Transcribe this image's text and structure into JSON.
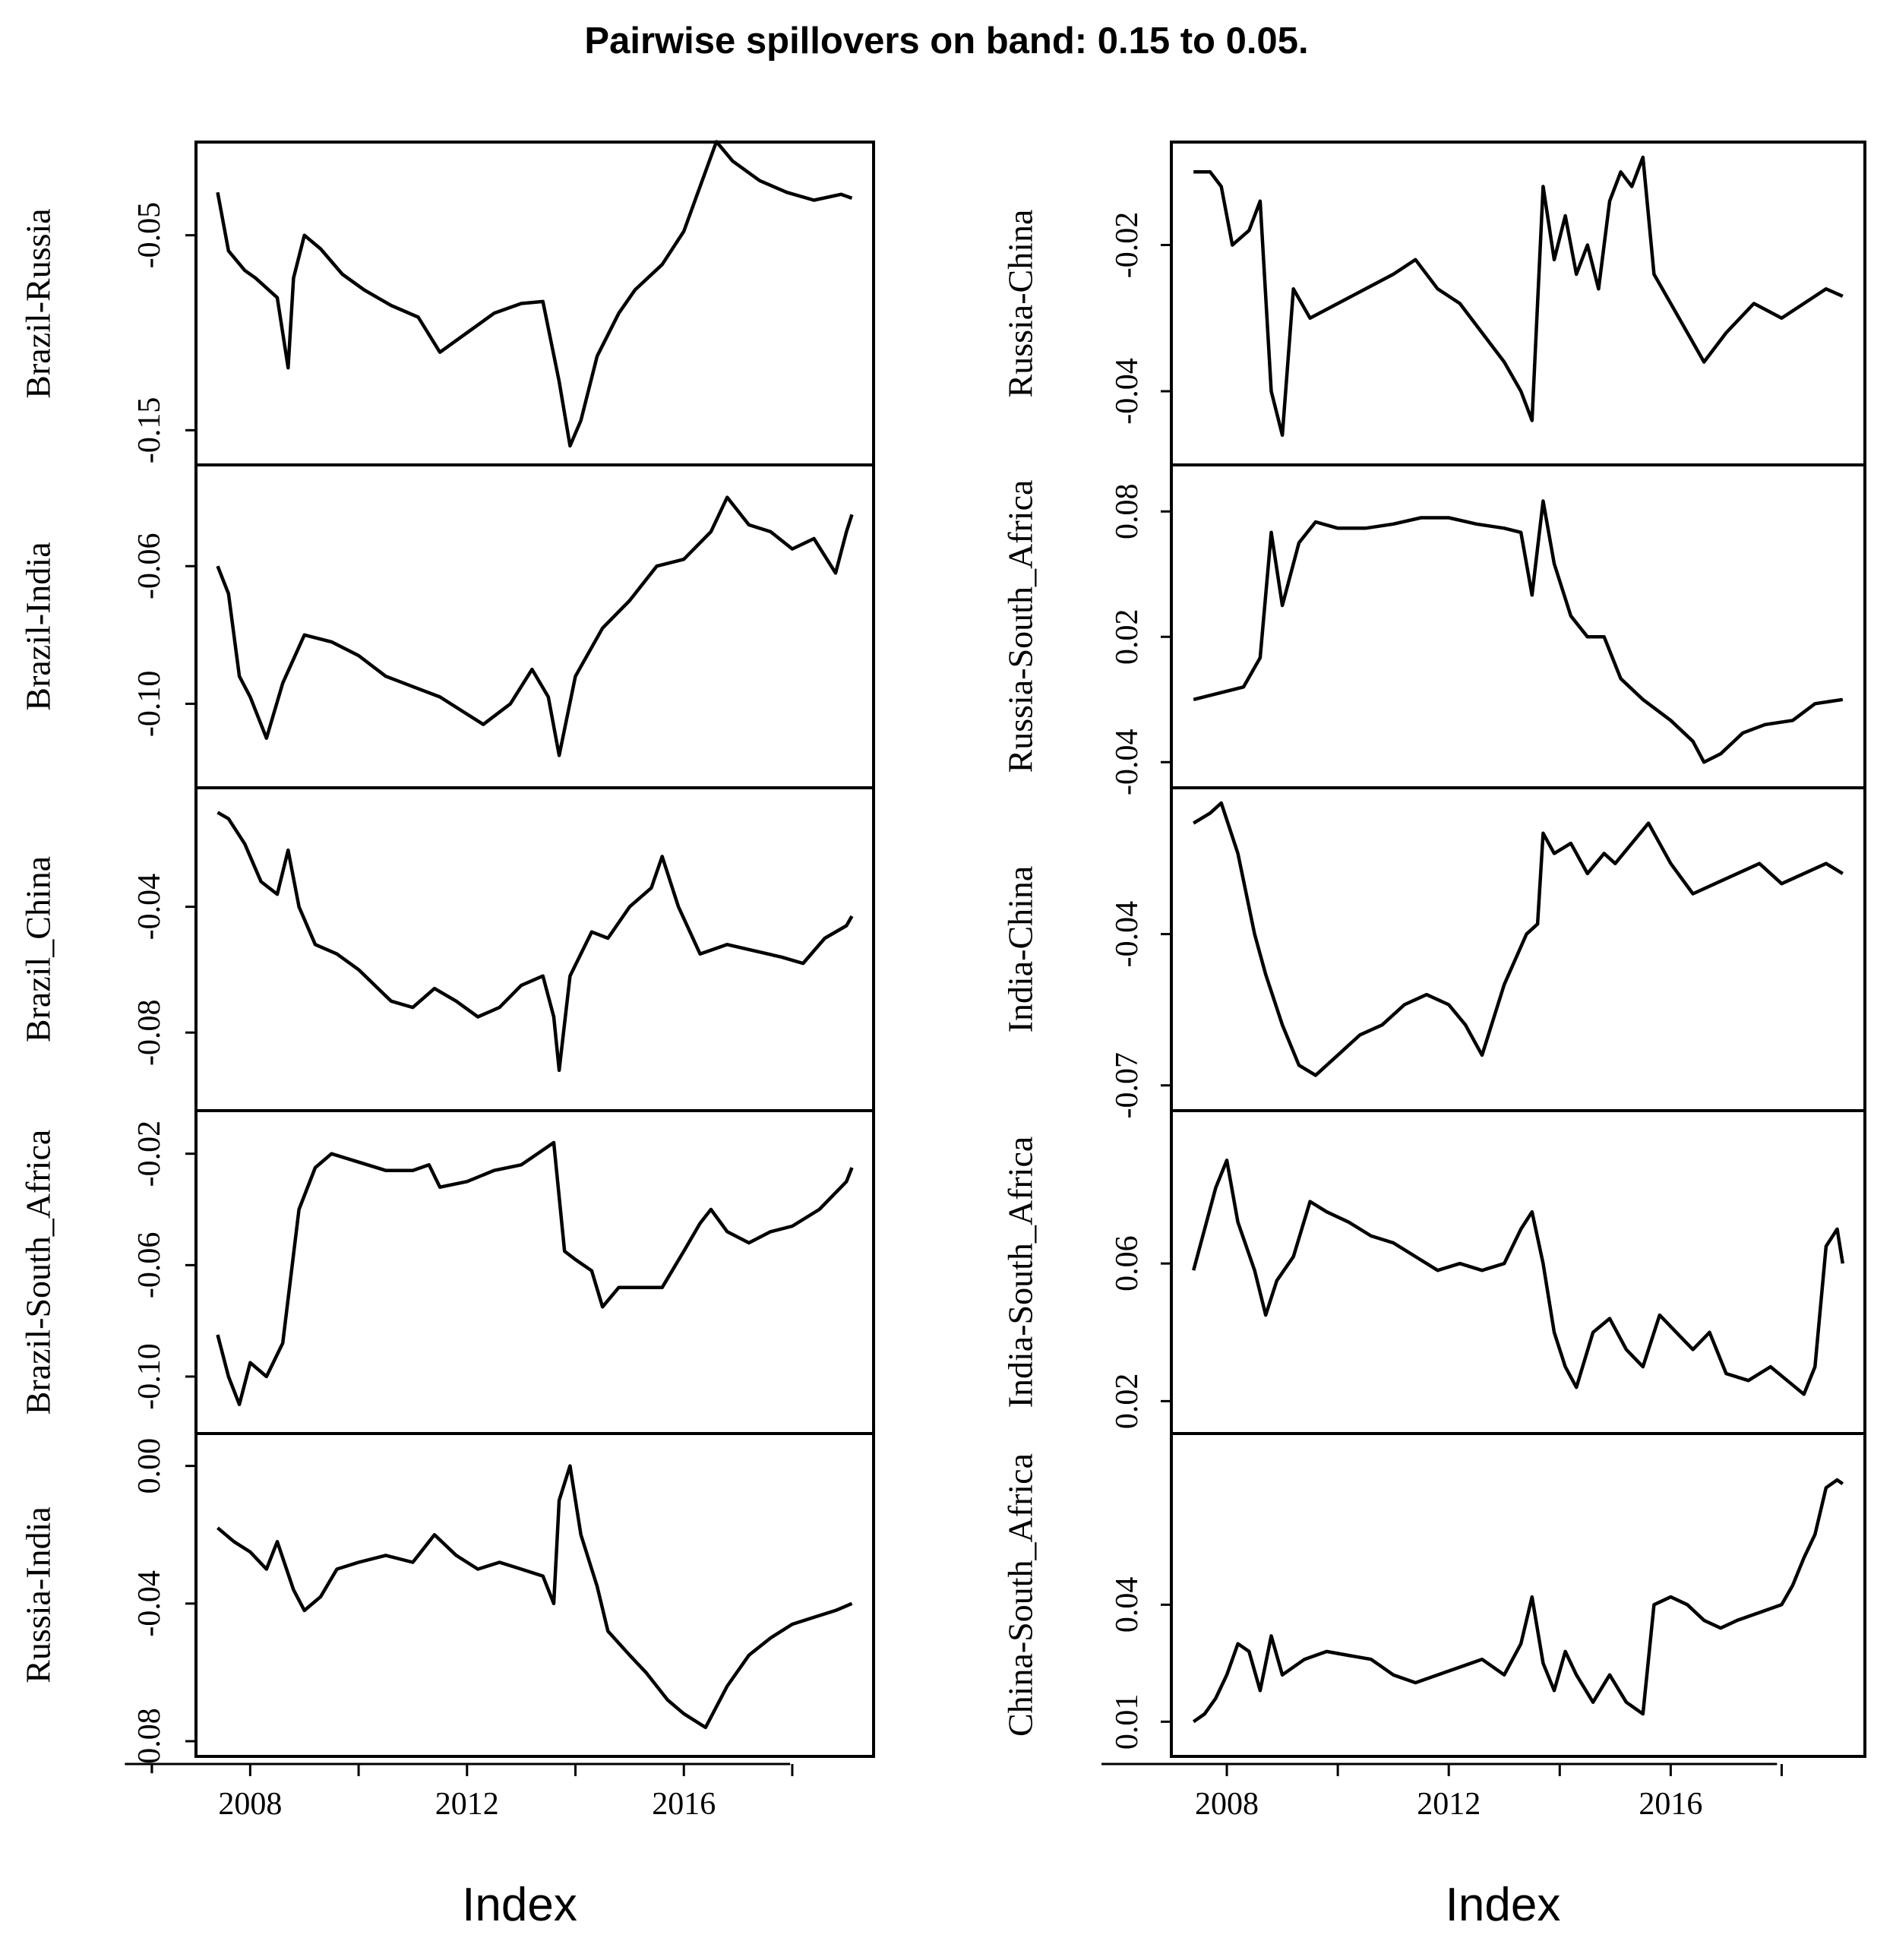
{
  "title": "Pairwise spillovers on band: 0.15 to 0.05.",
  "chart_data": [
    {
      "type": "line",
      "xlabel": "Index",
      "xticks": [
        2008,
        2012,
        2016
      ],
      "xlim": [
        2007.0,
        2019.5
      ],
      "panels": [
        {
          "ylabel": "Brazil-Russia",
          "ylim": [
            -0.16,
            -0.01
          ],
          "yticks": [
            "-0.05",
            "-0.15"
          ],
          "x": [
            2007.4,
            2007.6,
            2007.9,
            2008.1,
            2008.5,
            2008.7,
            2008.8,
            2009.0,
            2009.3,
            2009.7,
            2010.1,
            2010.6,
            2011.1,
            2011.5,
            2012.0,
            2012.5,
            2013.0,
            2013.4,
            2013.7,
            2013.9,
            2014.1,
            2014.4,
            2014.8,
            2015.1,
            2015.6,
            2016.0,
            2016.3,
            2016.6,
            2016.9,
            2017.4,
            2017.9,
            2018.4,
            2018.9,
            2019.1
          ],
          "y": [
            -0.028,
            -0.058,
            -0.068,
            -0.072,
            -0.082,
            -0.118,
            -0.072,
            -0.05,
            -0.057,
            -0.07,
            -0.078,
            -0.086,
            -0.092,
            -0.11,
            -0.1,
            -0.09,
            -0.085,
            -0.084,
            -0.125,
            -0.158,
            -0.145,
            -0.112,
            -0.09,
            -0.078,
            -0.065,
            -0.048,
            -0.025,
            -0.002,
            -0.012,
            -0.022,
            -0.028,
            -0.032,
            -0.029,
            -0.031
          ]
        },
        {
          "ylabel": "Brazil-India",
          "ylim": [
            -0.12,
            -0.035
          ],
          "yticks": [
            "-0.06",
            "-0.10"
          ],
          "x": [
            2007.4,
            2007.6,
            2007.8,
            2008.0,
            2008.3,
            2008.6,
            2009.0,
            2009.5,
            2010.0,
            2010.5,
            2011.0,
            2011.5,
            2012.0,
            2012.3,
            2012.8,
            2013.2,
            2013.5,
            2013.7,
            2014.0,
            2014.5,
            2015.0,
            2015.5,
            2016.0,
            2016.5,
            2016.8,
            2017.2,
            2017.6,
            2018.0,
            2018.4,
            2018.8,
            2019.0,
            2019.1
          ],
          "y": [
            -0.06,
            -0.068,
            -0.092,
            -0.098,
            -0.11,
            -0.094,
            -0.08,
            -0.082,
            -0.086,
            -0.092,
            -0.095,
            -0.098,
            -0.103,
            -0.106,
            -0.1,
            -0.09,
            -0.098,
            -0.115,
            -0.092,
            -0.078,
            -0.07,
            -0.06,
            -0.058,
            -0.05,
            -0.04,
            -0.048,
            -0.05,
            -0.055,
            -0.052,
            -0.062,
            -0.05,
            -0.045
          ]
        },
        {
          "ylabel": "Brazil_China",
          "ylim": [
            -0.1,
            -0.007
          ],
          "yticks": [
            "-0.04",
            "-0.08"
          ],
          "x": [
            2007.4,
            2007.6,
            2007.9,
            2008.2,
            2008.5,
            2008.7,
            2008.9,
            2009.2,
            2009.6,
            2010.0,
            2010.3,
            2010.6,
            2011.0,
            2011.4,
            2011.8,
            2012.2,
            2012.6,
            2013.0,
            2013.4,
            2013.6,
            2013.7,
            2013.9,
            2014.3,
            2014.6,
            2015.0,
            2015.4,
            2015.6,
            2015.9,
            2016.3,
            2016.8,
            2017.3,
            2017.8,
            2018.2,
            2018.6,
            2019.0,
            2019.1
          ],
          "y": [
            -0.01,
            -0.012,
            -0.02,
            -0.032,
            -0.036,
            -0.022,
            -0.04,
            -0.052,
            -0.055,
            -0.06,
            -0.065,
            -0.07,
            -0.072,
            -0.066,
            -0.07,
            -0.075,
            -0.072,
            -0.065,
            -0.062,
            -0.075,
            -0.092,
            -0.062,
            -0.048,
            -0.05,
            -0.04,
            -0.034,
            -0.024,
            -0.04,
            -0.055,
            -0.052,
            -0.054,
            -0.056,
            -0.058,
            -0.05,
            -0.046,
            -0.043
          ]
        },
        {
          "ylabel": "Brazil-South_Africa",
          "ylim": [
            -0.115,
            -0.01
          ],
          "yticks": [
            "-0.02",
            "-0.06",
            "-0.10"
          ],
          "x": [
            2007.4,
            2007.6,
            2007.8,
            2008.0,
            2008.3,
            2008.6,
            2008.9,
            2009.2,
            2009.5,
            2010.0,
            2010.5,
            2011.0,
            2011.3,
            2011.5,
            2012.0,
            2012.5,
            2013.0,
            2013.3,
            2013.6,
            2013.8,
            2014.0,
            2014.3,
            2014.5,
            2014.8,
            2015.2,
            2015.6,
            2016.0,
            2016.3,
            2016.5,
            2016.8,
            2017.2,
            2017.6,
            2018.0,
            2018.5,
            2019.0,
            2019.1
          ],
          "y": [
            -0.085,
            -0.1,
            -0.11,
            -0.095,
            -0.1,
            -0.088,
            -0.04,
            -0.025,
            -0.02,
            -0.023,
            -0.026,
            -0.026,
            -0.024,
            -0.032,
            -0.03,
            -0.026,
            -0.024,
            -0.02,
            -0.016,
            -0.055,
            -0.058,
            -0.062,
            -0.075,
            -0.068,
            -0.068,
            -0.068,
            -0.055,
            -0.045,
            -0.04,
            -0.048,
            -0.052,
            -0.048,
            -0.046,
            -0.04,
            -0.03,
            -0.025
          ]
        },
        {
          "ylabel": "Russia-India",
          "ylim": [
            -0.08,
            0.005
          ],
          "yticks": [
            "0.00",
            "-0.04",
            "-0.08"
          ],
          "x": [
            2007.4,
            2007.7,
            2008.0,
            2008.3,
            2008.5,
            2008.8,
            2009.0,
            2009.3,
            2009.6,
            2010.0,
            2010.5,
            2011.0,
            2011.4,
            2011.8,
            2012.2,
            2012.6,
            2013.0,
            2013.4,
            2013.6,
            2013.7,
            2013.9,
            2014.1,
            2014.4,
            2014.6,
            2015.0,
            2015.3,
            2015.7,
            2016.0,
            2016.4,
            2016.8,
            2017.2,
            2017.6,
            2018.0,
            2018.4,
            2018.8,
            2019.1
          ],
          "y": [
            -0.018,
            -0.022,
            -0.025,
            -0.03,
            -0.022,
            -0.036,
            -0.042,
            -0.038,
            -0.03,
            -0.028,
            -0.026,
            -0.028,
            -0.02,
            -0.026,
            -0.03,
            -0.028,
            -0.03,
            -0.032,
            -0.04,
            -0.01,
            0.0,
            -0.02,
            -0.035,
            -0.048,
            -0.055,
            -0.06,
            -0.068,
            -0.072,
            -0.076,
            -0.064,
            -0.055,
            -0.05,
            -0.046,
            -0.044,
            -0.042,
            -0.04
          ]
        }
      ]
    },
    {
      "type": "line",
      "xlabel": "Index",
      "xticks": [
        2008,
        2012,
        2016
      ],
      "xlim": [
        2007.0,
        2019.5
      ],
      "panels": [
        {
          "ylabel": "Russia-China",
          "ylim": [
            -0.048,
            -0.008
          ],
          "yticks": [
            "-0.02",
            "-0.04"
          ],
          "x": [
            2007.4,
            2007.7,
            2007.9,
            2008.1,
            2008.4,
            2008.6,
            2008.8,
            2009.0,
            2009.2,
            2009.5,
            2010.0,
            2010.5,
            2011.0,
            2011.4,
            2011.8,
            2012.2,
            2012.6,
            2013.0,
            2013.3,
            2013.5,
            2013.7,
            2013.9,
            2014.1,
            2014.3,
            2014.5,
            2014.7,
            2014.9,
            2015.1,
            2015.3,
            2015.5,
            2015.7,
            2016.0,
            2016.3,
            2016.6,
            2017.0,
            2017.5,
            2018.0,
            2018.4,
            2018.8,
            2019.1
          ],
          "y": [
            -0.01,
            -0.01,
            -0.012,
            -0.02,
            -0.018,
            -0.014,
            -0.04,
            -0.046,
            -0.026,
            -0.03,
            -0.028,
            -0.026,
            -0.024,
            -0.022,
            -0.026,
            -0.028,
            -0.032,
            -0.036,
            -0.04,
            -0.044,
            -0.012,
            -0.022,
            -0.016,
            -0.024,
            -0.02,
            -0.026,
            -0.014,
            -0.01,
            -0.012,
            -0.008,
            -0.024,
            -0.028,
            -0.032,
            -0.036,
            -0.032,
            -0.028,
            -0.03,
            -0.028,
            -0.026,
            -0.027
          ]
        },
        {
          "ylabel": "Russia-South_Africa",
          "ylim": [
            -0.045,
            0.095
          ],
          "yticks": [
            "0.08",
            "0.02",
            "-0.04"
          ],
          "x": [
            2007.4,
            2007.7,
            2008.0,
            2008.3,
            2008.6,
            2008.8,
            2009.0,
            2009.3,
            2009.6,
            2010.0,
            2010.5,
            2011.0,
            2011.5,
            2012.0,
            2012.5,
            2013.0,
            2013.3,
            2013.5,
            2013.7,
            2013.9,
            2014.2,
            2014.5,
            2014.8,
            2015.1,
            2015.5,
            2016.0,
            2016.4,
            2016.6,
            2016.9,
            2017.3,
            2017.7,
            2018.2,
            2018.6,
            2019.1
          ],
          "y": [
            -0.01,
            -0.008,
            -0.006,
            -0.004,
            0.01,
            0.07,
            0.035,
            0.065,
            0.075,
            0.072,
            0.072,
            0.074,
            0.077,
            0.077,
            0.074,
            0.072,
            0.07,
            0.04,
            0.085,
            0.055,
            0.03,
            0.02,
            0.02,
            0.0,
            -0.01,
            -0.02,
            -0.03,
            -0.04,
            -0.036,
            -0.026,
            -0.022,
            -0.02,
            -0.012,
            -0.01
          ]
        },
        {
          "ylabel": "India-China",
          "ylim": [
            -0.072,
            -0.014
          ],
          "yticks": [
            "-0.04",
            "-0.07"
          ],
          "x": [
            2007.4,
            2007.7,
            2007.9,
            2008.2,
            2008.5,
            2008.7,
            2009.0,
            2009.3,
            2009.6,
            2010.0,
            2010.4,
            2010.8,
            2011.2,
            2011.6,
            2012.0,
            2012.3,
            2012.6,
            2013.0,
            2013.4,
            2013.6,
            2013.7,
            2013.9,
            2014.2,
            2014.5,
            2014.8,
            2015.0,
            2015.3,
            2015.6,
            2016.0,
            2016.4,
            2016.8,
            2017.2,
            2017.6,
            2018.0,
            2018.4,
            2018.8,
            2019.1
          ],
          "y": [
            -0.018,
            -0.016,
            -0.014,
            -0.024,
            -0.04,
            -0.048,
            -0.058,
            -0.066,
            -0.068,
            -0.064,
            -0.06,
            -0.058,
            -0.054,
            -0.052,
            -0.054,
            -0.058,
            -0.064,
            -0.05,
            -0.04,
            -0.038,
            -0.02,
            -0.024,
            -0.022,
            -0.028,
            -0.024,
            -0.026,
            -0.022,
            -0.018,
            -0.026,
            -0.032,
            -0.03,
            -0.028,
            -0.026,
            -0.03,
            -0.028,
            -0.026,
            -0.028
          ]
        },
        {
          "ylabel": "India-South_Africa",
          "ylim": [
            0.015,
            0.1
          ],
          "yticks": [
            "0.06",
            "0.02"
          ],
          "x": [
            2007.4,
            2007.6,
            2007.8,
            2008.0,
            2008.2,
            2008.5,
            2008.7,
            2008.9,
            2009.2,
            2009.5,
            2009.8,
            2010.2,
            2010.6,
            2011.0,
            2011.4,
            2011.8,
            2012.2,
            2012.6,
            2013.0,
            2013.3,
            2013.5,
            2013.7,
            2013.9,
            2014.1,
            2014.3,
            2014.6,
            2014.9,
            2015.2,
            2015.5,
            2015.8,
            2016.1,
            2016.4,
            2016.7,
            2017.0,
            2017.4,
            2017.8,
            2018.1,
            2018.4,
            2018.6,
            2018.8,
            2019.0,
            2019.1
          ],
          "y": [
            0.058,
            0.07,
            0.082,
            0.09,
            0.072,
            0.058,
            0.045,
            0.055,
            0.062,
            0.078,
            0.075,
            0.072,
            0.068,
            0.066,
            0.062,
            0.058,
            0.06,
            0.058,
            0.06,
            0.07,
            0.075,
            0.06,
            0.04,
            0.03,
            0.024,
            0.04,
            0.044,
            0.035,
            0.03,
            0.045,
            0.04,
            0.035,
            0.04,
            0.028,
            0.026,
            0.03,
            0.026,
            0.022,
            0.03,
            0.065,
            0.07,
            0.06
          ]
        },
        {
          "ylabel": "China-South_Africa",
          "ylim": [
            0.005,
            0.08
          ],
          "yticks": [
            "0.04",
            "0.01"
          ],
          "x": [
            2007.4,
            2007.6,
            2007.8,
            2008.0,
            2008.2,
            2008.4,
            2008.6,
            2008.8,
            2009.0,
            2009.4,
            2009.8,
            2010.2,
            2010.6,
            2011.0,
            2011.4,
            2011.8,
            2012.2,
            2012.6,
            2013.0,
            2013.3,
            2013.5,
            2013.7,
            2013.9,
            2014.1,
            2014.3,
            2014.6,
            2014.9,
            2015.2,
            2015.5,
            2015.7,
            2016.0,
            2016.3,
            2016.6,
            2016.9,
            2017.2,
            2017.6,
            2018.0,
            2018.2,
            2018.4,
            2018.6,
            2018.8,
            2019.0,
            2019.1
          ],
          "y": [
            0.01,
            0.012,
            0.016,
            0.022,
            0.03,
            0.028,
            0.018,
            0.032,
            0.022,
            0.026,
            0.028,
            0.027,
            0.026,
            0.022,
            0.02,
            0.022,
            0.024,
            0.026,
            0.022,
            0.03,
            0.042,
            0.025,
            0.018,
            0.028,
            0.022,
            0.015,
            0.022,
            0.015,
            0.012,
            0.04,
            0.042,
            0.04,
            0.036,
            0.034,
            0.036,
            0.038,
            0.04,
            0.045,
            0.052,
            0.058,
            0.07,
            0.072,
            0.071
          ]
        }
      ]
    }
  ]
}
